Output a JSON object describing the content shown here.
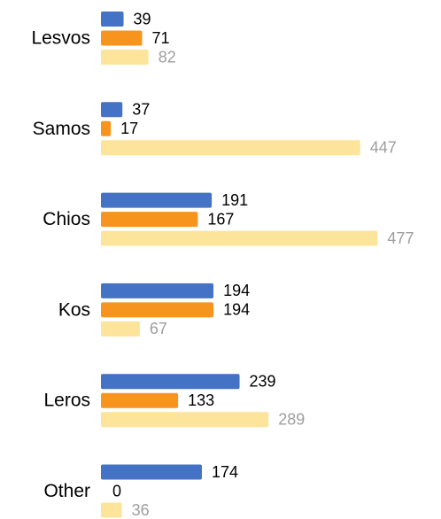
{
  "chart_data": {
    "type": "bar",
    "orientation": "horizontal",
    "categories": [
      "Lesvos",
      "Samos",
      "Chios",
      "Kos",
      "Leros",
      "Other"
    ],
    "series": [
      {
        "values": [
          39,
          37,
          191,
          194,
          239,
          174
        ],
        "color": "#4472C4",
        "label_color": "#000000"
      },
      {
        "values": [
          71,
          17,
          167,
          194,
          133,
          0
        ],
        "color": "#F7941D",
        "label_color": "#000000"
      },
      {
        "values": [
          82,
          447,
          477,
          67,
          289,
          36
        ],
        "color": "#FDE49B",
        "label_color": "#9E9E9E"
      }
    ],
    "xlim": [
      0,
      500
    ],
    "grid": false,
    "legend": "none",
    "data_labels": true
  }
}
